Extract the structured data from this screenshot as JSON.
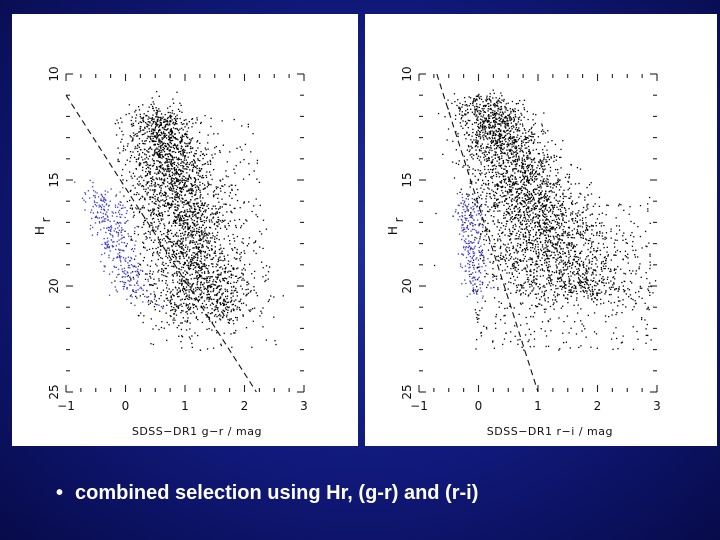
{
  "chart_data": [
    {
      "type": "scatter",
      "xlabel": "SDSS−DR1 g−r / mag",
      "ylabel": "H_r",
      "xlim": [
        -1,
        3
      ],
      "ylim": [
        25,
        10
      ],
      "xticks": [
        "−1",
        "0",
        "1",
        "2",
        "3"
      ],
      "yticks": [
        "10",
        "15",
        "20",
        "25"
      ],
      "dashed_line": [
        [
          -1.0,
          11.0
        ],
        [
          2.2,
          25.0
        ]
      ],
      "series": [
        {
          "color": "#000000",
          "description_points": "dense cloud roughly x 0.2–1.7, y 11.5–21.5",
          "sample": [
            [
              0.3,
              12.5
            ],
            [
              0.8,
              14.0
            ],
            [
              1.2,
              16.5
            ],
            [
              1.5,
              19.0
            ],
            [
              1.6,
              21.0
            ],
            [
              0.5,
              16.5
            ]
          ]
        },
        {
          "color": "#3a3ad8",
          "sample": [
            [
              -0.4,
              16.5
            ],
            [
              -0.2,
              18.0
            ],
            [
              0.0,
              19.0
            ],
            [
              0.3,
              20.0
            ],
            [
              -0.5,
              15.5
            ]
          ]
        }
      ]
    },
    {
      "type": "scatter",
      "xlabel": "SDSS−DR1 r−i / mag",
      "ylabel": "H_r",
      "xlim": [
        -1,
        3
      ],
      "ylim": [
        25,
        10
      ],
      "xticks": [
        "−1",
        "0",
        "1",
        "2",
        "3"
      ],
      "yticks": [
        "10",
        "15",
        "20",
        "25"
      ],
      "dashed_line": [
        [
          -0.7,
          10.0
        ],
        [
          1.0,
          25.0
        ]
      ],
      "series": [
        {
          "color": "#000000",
          "sample": [
            [
              0.2,
              12.0
            ],
            [
              0.6,
              14.0
            ],
            [
              1.1,
              16.5
            ],
            [
              1.6,
              18.5
            ],
            [
              2.0,
              19.5
            ],
            [
              0.4,
              18.5
            ]
          ]
        },
        {
          "color": "#3a3ad8",
          "sample": [
            [
              -0.1,
              16.0
            ],
            [
              0.0,
              18.0
            ],
            [
              0.1,
              19.5
            ],
            [
              -0.2,
              17.0
            ]
          ]
        }
      ]
    }
  ],
  "caption": {
    "bullet": "•",
    "text": "combined selection using Hr, (g-r) and (r-i)"
  },
  "colors": {
    "background": "#10197a",
    "panel": "#ffffff",
    "red_points": "#000000",
    "blue_points": "#3a3ad8"
  }
}
